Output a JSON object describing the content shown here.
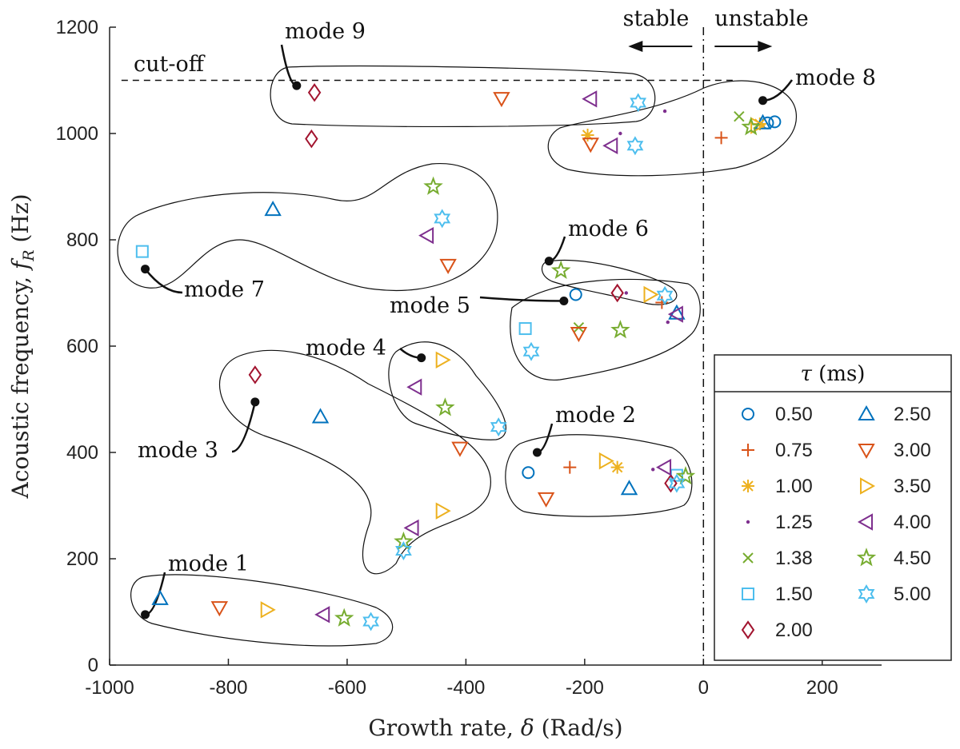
{
  "chart_data": {
    "type": "scatter",
    "xlabel_text": "Growth rate,",
    "xlabel_symbol": "δ",
    "xlabel_unit": "(Rad/s)",
    "ylabel_text": "Acoustic frequency,",
    "ylabel_symbol": "f",
    "ylabel_sub": "R",
    "ylabel_unit": "(Hz)",
    "xlim": [
      -1000,
      300
    ],
    "ylim": [
      0,
      1200
    ],
    "xticks": [
      -1000,
      -800,
      -600,
      -400,
      -200,
      0,
      200
    ],
    "yticks": [
      0,
      200,
      400,
      600,
      800,
      1000,
      1200
    ],
    "cutoff": {
      "label": "cut-off",
      "y": 1100,
      "x_range": [
        -980,
        50
      ]
    },
    "stability_line": {
      "x": 0,
      "left_label": "stable",
      "right_label": "unstable"
    },
    "legend": {
      "title_symbol": "τ",
      "title_unit": "(ms)"
    },
    "series": [
      {
        "name": "0.50",
        "marker": "circle",
        "color": "#0072BD",
        "points": [
          [
            -295,
            362
          ],
          [
            -215,
            697
          ],
          [
            120,
            1022
          ],
          [
            108,
            1020
          ]
        ]
      },
      {
        "name": "0.75",
        "marker": "plus",
        "color": "#D95319",
        "points": [
          [
            -225,
            372
          ],
          [
            -70,
            682
          ],
          [
            30,
            992
          ]
        ]
      },
      {
        "name": "1.00",
        "marker": "asterisk",
        "color": "#EDB120",
        "points": [
          [
            -145,
            372
          ],
          [
            -195,
            997
          ],
          [
            95,
            1018
          ]
        ]
      },
      {
        "name": "1.25",
        "marker": "dot",
        "color": "#7E2F8E",
        "points": [
          [
            -85,
            368
          ],
          [
            -140,
            1000
          ],
          [
            -60,
            645
          ],
          [
            -65,
            1042
          ],
          [
            -130,
            700
          ]
        ]
      },
      {
        "name": "1.38",
        "marker": "cross",
        "color": "#77AC30",
        "points": [
          [
            -210,
            635
          ],
          [
            60,
            1032
          ]
        ]
      },
      {
        "name": "1.50",
        "marker": "square",
        "color": "#4DBEEE",
        "points": [
          [
            -945,
            778
          ],
          [
            -300,
            633
          ],
          [
            -45,
            357
          ]
        ]
      },
      {
        "name": "2.00",
        "marker": "diamond",
        "color": "#A2142F",
        "points": [
          [
            -755,
            546
          ],
          [
            -655,
            1077
          ],
          [
            -660,
            990
          ],
          [
            -145,
            700
          ],
          [
            -55,
            342
          ]
        ]
      },
      {
        "name": "2.50",
        "marker": "triangle-up",
        "color": "#0072BD",
        "points": [
          [
            -915,
            125
          ],
          [
            -645,
            467
          ],
          [
            -725,
            857
          ],
          [
            -125,
            332
          ],
          [
            -45,
            662
          ],
          [
            100,
            1020
          ]
        ]
      },
      {
        "name": "3.00",
        "marker": "triangle-down",
        "color": "#D95319",
        "points": [
          [
            -815,
            108
          ],
          [
            -410,
            408
          ],
          [
            -430,
            752
          ],
          [
            -265,
            313
          ],
          [
            -210,
            624
          ],
          [
            -340,
            1066
          ],
          [
            -190,
            980
          ]
        ]
      },
      {
        "name": "3.50",
        "marker": "triangle-right",
        "color": "#EDB120",
        "points": [
          [
            -735,
            104
          ],
          [
            -440,
            290
          ],
          [
            -440,
            574
          ],
          [
            -165,
            384
          ],
          [
            -90,
            697
          ],
          [
            90,
            1015
          ]
        ]
      },
      {
        "name": "4.00",
        "marker": "triangle-left",
        "color": "#7E2F8E",
        "points": [
          [
            -640,
            95
          ],
          [
            -490,
            258
          ],
          [
            -485,
            523
          ],
          [
            -465,
            808
          ],
          [
            -190,
            1065
          ],
          [
            -155,
            977
          ],
          [
            -65,
            372
          ],
          [
            -45,
            660
          ]
        ]
      },
      {
        "name": "4.50",
        "marker": "star",
        "color": "#77AC30",
        "points": [
          [
            -605,
            88
          ],
          [
            -505,
            232
          ],
          [
            -435,
            484
          ],
          [
            -455,
            900
          ],
          [
            -240,
            742
          ],
          [
            -140,
            630
          ],
          [
            -30,
            355
          ],
          [
            80,
            1012
          ]
        ]
      },
      {
        "name": "5.00",
        "marker": "hexagram",
        "color": "#4DBEEE",
        "points": [
          [
            -560,
            82
          ],
          [
            -505,
            215
          ],
          [
            -345,
            448
          ],
          [
            -440,
            840
          ],
          [
            -290,
            590
          ],
          [
            -65,
            695
          ],
          [
            -45,
            342
          ],
          [
            -110,
            1058
          ],
          [
            -115,
            977
          ]
        ]
      }
    ],
    "annotations": [
      {
        "label": "mode 1",
        "point": [
          -940,
          95
        ]
      },
      {
        "label": "mode 2",
        "point": [
          -280,
          400
        ]
      },
      {
        "label": "mode 3",
        "point": [
          -755,
          495
        ]
      },
      {
        "label": "mode 4",
        "point": [
          -475,
          578
        ]
      },
      {
        "label": "mode 5",
        "point": [
          -235,
          685
        ]
      },
      {
        "label": "mode 6",
        "point": [
          -260,
          760
        ]
      },
      {
        "label": "mode 7",
        "point": [
          -940,
          745
        ]
      },
      {
        "label": "mode 8",
        "point": [
          100,
          1062
        ]
      },
      {
        "label": "mode 9",
        "point": [
          -685,
          1090
        ]
      }
    ]
  }
}
